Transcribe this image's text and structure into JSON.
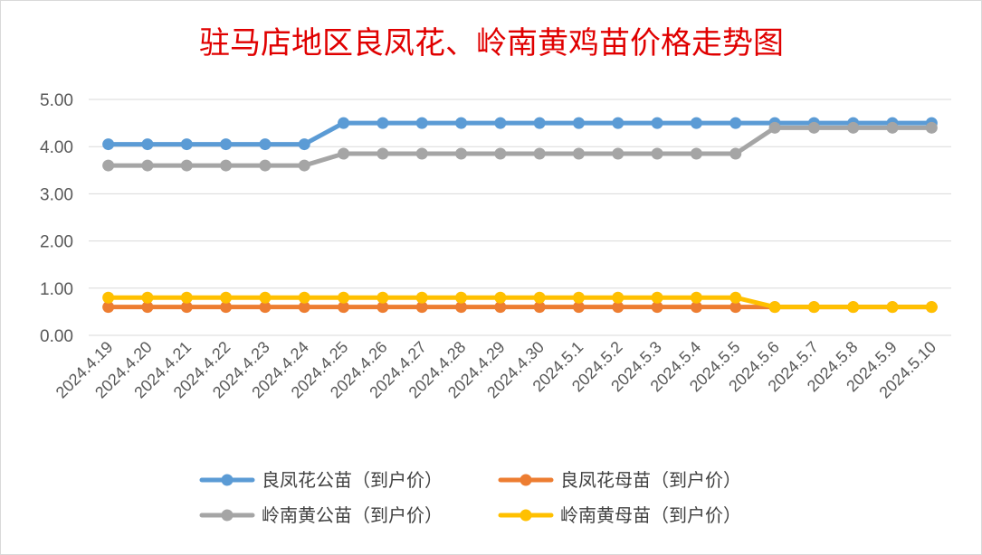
{
  "chart_data": {
    "type": "line",
    "title": "驻马店地区良凤花、岭南黄鸡苗价格走势图",
    "xlabel": "",
    "ylabel": "",
    "categories": [
      "2024.4.19",
      "2024.4.20",
      "2024.4.21",
      "2024.4.22",
      "2024.4.23",
      "2024.4.24",
      "2024.4.25",
      "2024.4.26",
      "2024.4.27",
      "2024.4.28",
      "2024.4.29",
      "2024.4.30",
      "2024.5.1",
      "2024.5.2",
      "2024.5.3",
      "2024.5.4",
      "2024.5.5",
      "2024.5.6",
      "2024.5.7",
      "2024.5.8",
      "2024.5.9",
      "2024.5.10"
    ],
    "ylim": [
      0,
      5
    ],
    "yticks": [
      "0.00",
      "1.00",
      "2.00",
      "3.00",
      "4.00",
      "5.00"
    ],
    "grid": true,
    "legend_position": "bottom",
    "series": [
      {
        "name": "良凤花公苗（到户价）",
        "color": "#5b9bd5",
        "values": [
          4.05,
          4.05,
          4.05,
          4.05,
          4.05,
          4.05,
          4.5,
          4.5,
          4.5,
          4.5,
          4.5,
          4.5,
          4.5,
          4.5,
          4.5,
          4.5,
          4.5,
          4.5,
          4.5,
          4.5,
          4.5,
          4.5
        ]
      },
      {
        "name": "良凤花母苗（到户价）",
        "color": "#ed7d31",
        "values": [
          0.6,
          0.6,
          0.6,
          0.6,
          0.6,
          0.6,
          0.6,
          0.6,
          0.6,
          0.6,
          0.6,
          0.6,
          0.6,
          0.6,
          0.6,
          0.6,
          0.6,
          0.6,
          0.6,
          0.6,
          0.6,
          0.6
        ]
      },
      {
        "name": "岭南黄公苗（到户价）",
        "color": "#a5a5a5",
        "values": [
          3.6,
          3.6,
          3.6,
          3.6,
          3.6,
          3.6,
          3.85,
          3.85,
          3.85,
          3.85,
          3.85,
          3.85,
          3.85,
          3.85,
          3.85,
          3.85,
          3.85,
          4.4,
          4.4,
          4.4,
          4.4,
          4.4
        ]
      },
      {
        "name": "岭南黄母苗（到户价）",
        "color": "#ffc000",
        "values": [
          0.8,
          0.8,
          0.8,
          0.8,
          0.8,
          0.8,
          0.8,
          0.8,
          0.8,
          0.8,
          0.8,
          0.8,
          0.8,
          0.8,
          0.8,
          0.8,
          0.8,
          0.6,
          0.6,
          0.6,
          0.6,
          0.6
        ]
      }
    ]
  }
}
